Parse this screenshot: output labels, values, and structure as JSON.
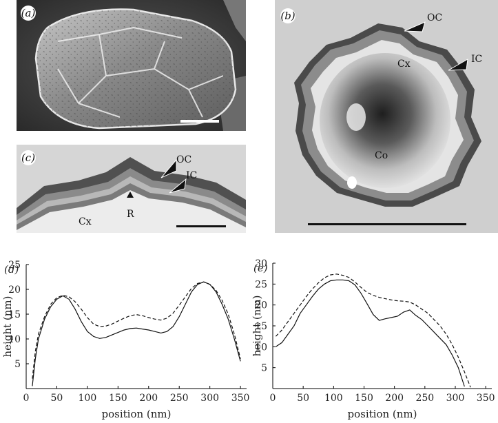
{
  "panels": {
    "a": {
      "label": "(a)"
    },
    "b": {
      "label": "(b)",
      "annotations": {
        "oc": "OC",
        "ic": "IC",
        "cx": "Cx",
        "co": "Co"
      }
    },
    "c": {
      "label": "(c)",
      "annotations": {
        "oc": "OC",
        "ic": "IC",
        "r": "R",
        "cx": "Cx"
      }
    }
  },
  "chart_data": [
    {
      "type": "line",
      "panel_label": "(d)",
      "xlabel": "position (nm)",
      "ylabel": "height (nm)",
      "xlim": [
        0,
        360
      ],
      "ylim": [
        0,
        25
      ],
      "xticks": [
        0,
        50,
        100,
        150,
        200,
        250,
        300,
        350
      ],
      "yticks": [
        5,
        10,
        15,
        20,
        25
      ],
      "series": [
        {
          "style": "solid",
          "x": [
            10,
            15,
            20,
            30,
            40,
            50,
            60,
            70,
            80,
            90,
            100,
            110,
            120,
            130,
            140,
            150,
            160,
            170,
            180,
            190,
            200,
            210,
            220,
            230,
            240,
            250,
            260,
            270,
            280,
            290,
            300,
            310,
            320,
            330,
            340,
            350
          ],
          "y": [
            0.5,
            6,
            10,
            14,
            16.5,
            18,
            18.7,
            18,
            16,
            13.5,
            11.5,
            10.5,
            10.1,
            10.3,
            10.8,
            11.3,
            11.8,
            12.1,
            12.2,
            12,
            11.8,
            11.5,
            11.2,
            11.5,
            12.5,
            14.5,
            17,
            19.5,
            21,
            21.5,
            21,
            19.5,
            17,
            14,
            10,
            5.5
          ]
        },
        {
          "style": "dashed",
          "x": [
            10,
            15,
            20,
            30,
            40,
            50,
            60,
            70,
            80,
            90,
            100,
            110,
            120,
            130,
            140,
            150,
            160,
            170,
            180,
            190,
            200,
            210,
            220,
            230,
            240,
            250,
            260,
            270,
            280,
            290,
            300,
            310,
            320,
            330,
            340,
            350
          ],
          "y": [
            2,
            7.5,
            11,
            14.5,
            17,
            18.3,
            18.8,
            18.5,
            17.5,
            16,
            14.3,
            13,
            12.5,
            12.6,
            13,
            13.6,
            14.2,
            14.7,
            14.9,
            14.7,
            14.3,
            14,
            13.8,
            14.2,
            15.2,
            16.8,
            18.5,
            20.2,
            21.2,
            21.5,
            21,
            19.8,
            17.8,
            15,
            11,
            6
          ]
        }
      ]
    },
    {
      "type": "line",
      "panel_label": "(e)",
      "xlabel": "position (nm)",
      "ylabel": "height (nm)",
      "xlim": [
        0,
        360
      ],
      "ylim": [
        0,
        30
      ],
      "xticks": [
        0,
        50,
        100,
        150,
        200,
        250,
        300,
        350
      ],
      "yticks": [
        5,
        10,
        15,
        20,
        25,
        30
      ],
      "series": [
        {
          "style": "solid",
          "x": [
            5,
            15,
            25,
            35,
            45,
            55,
            65,
            75,
            85,
            95,
            105,
            115,
            125,
            135,
            145,
            155,
            165,
            175,
            185,
            195,
            205,
            215,
            225,
            235,
            245,
            255,
            265,
            275,
            285,
            295,
            305,
            315
          ],
          "y": [
            10,
            11,
            13,
            15,
            18,
            20,
            22,
            23.8,
            25,
            25.8,
            26,
            26,
            25.8,
            24.8,
            22.8,
            20.3,
            17.7,
            16.3,
            16.7,
            17,
            17.3,
            18.3,
            18.8,
            17.5,
            16.5,
            15,
            13.5,
            12,
            10.5,
            8,
            5,
            0.5
          ]
        },
        {
          "style": "dashed",
          "x": [
            5,
            15,
            25,
            35,
            45,
            55,
            65,
            75,
            85,
            95,
            105,
            115,
            125,
            135,
            145,
            155,
            165,
            175,
            185,
            195,
            205,
            215,
            225,
            235,
            245,
            255,
            265,
            275,
            285,
            295,
            305,
            315,
            325
          ],
          "y": [
            12.5,
            14,
            16,
            18,
            20,
            22,
            23.8,
            25.3,
            26.5,
            27.2,
            27.4,
            27.1,
            26.6,
            25.5,
            24.2,
            23,
            22.3,
            21.8,
            21.5,
            21.2,
            21,
            20.9,
            20.7,
            20,
            19,
            18,
            16.5,
            15,
            13,
            10.5,
            7.5,
            4,
            0.3
          ]
        }
      ]
    }
  ]
}
